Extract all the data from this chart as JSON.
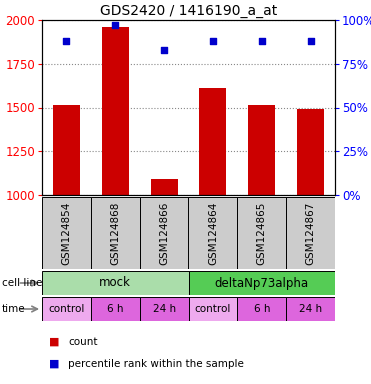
{
  "title": "GDS2420 / 1416190_a_at",
  "samples": [
    "GSM124854",
    "GSM124868",
    "GSM124866",
    "GSM124864",
    "GSM124865",
    "GSM124867"
  ],
  "counts": [
    1517,
    1960,
    1093,
    1612,
    1513,
    1489
  ],
  "percentiles": [
    88,
    97,
    83,
    88,
    88,
    88
  ],
  "ymin": 1000,
  "ymax": 2000,
  "yticks_left": [
    1000,
    1250,
    1500,
    1750,
    2000
  ],
  "yticks_right": [
    0,
    25,
    50,
    75,
    100
  ],
  "bar_color": "#cc0000",
  "dot_color": "#0000cc",
  "cell_line_groups": [
    {
      "label": "mock",
      "start": 0,
      "end": 3,
      "color": "#aaeea a"
    },
    {
      "label": "deltaNp73alpha",
      "start": 3,
      "end": 6,
      "color": "#55cc55"
    }
  ],
  "time_colors": [
    "#eeaaee",
    "#dd66dd",
    "#dd66dd",
    "#eeaaee",
    "#dd66dd",
    "#dd66dd"
  ],
  "time_labels": [
    "control",
    "6 h",
    "24 h",
    "control",
    "6 h",
    "24 h"
  ],
  "sample_bg_color": "#cccccc",
  "legend_count_color": "#cc0000",
  "legend_pct_color": "#0000cc",
  "cell_line_mock_color": "#aaddaa",
  "cell_line_delta_color": "#55cc55"
}
